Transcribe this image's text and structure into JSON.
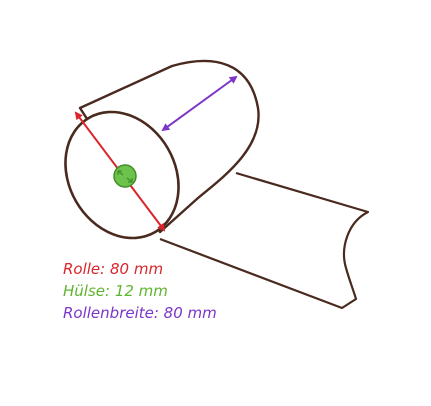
{
  "colors": {
    "outline": "#4a2a1f",
    "diameter_arrow": "#d9252b",
    "core_fill": "#6cc24a",
    "core_stroke": "#3e8f2a",
    "width_arrow": "#7b35c9"
  },
  "legend": [
    {
      "text": "Rolle: 80 mm",
      "color": "#d9252b"
    },
    {
      "text": "Hülse: 12 mm",
      "color": "#5fb52f"
    },
    {
      "text": "Rollenbreite: 80 mm",
      "color": "#7b35c9"
    }
  ]
}
